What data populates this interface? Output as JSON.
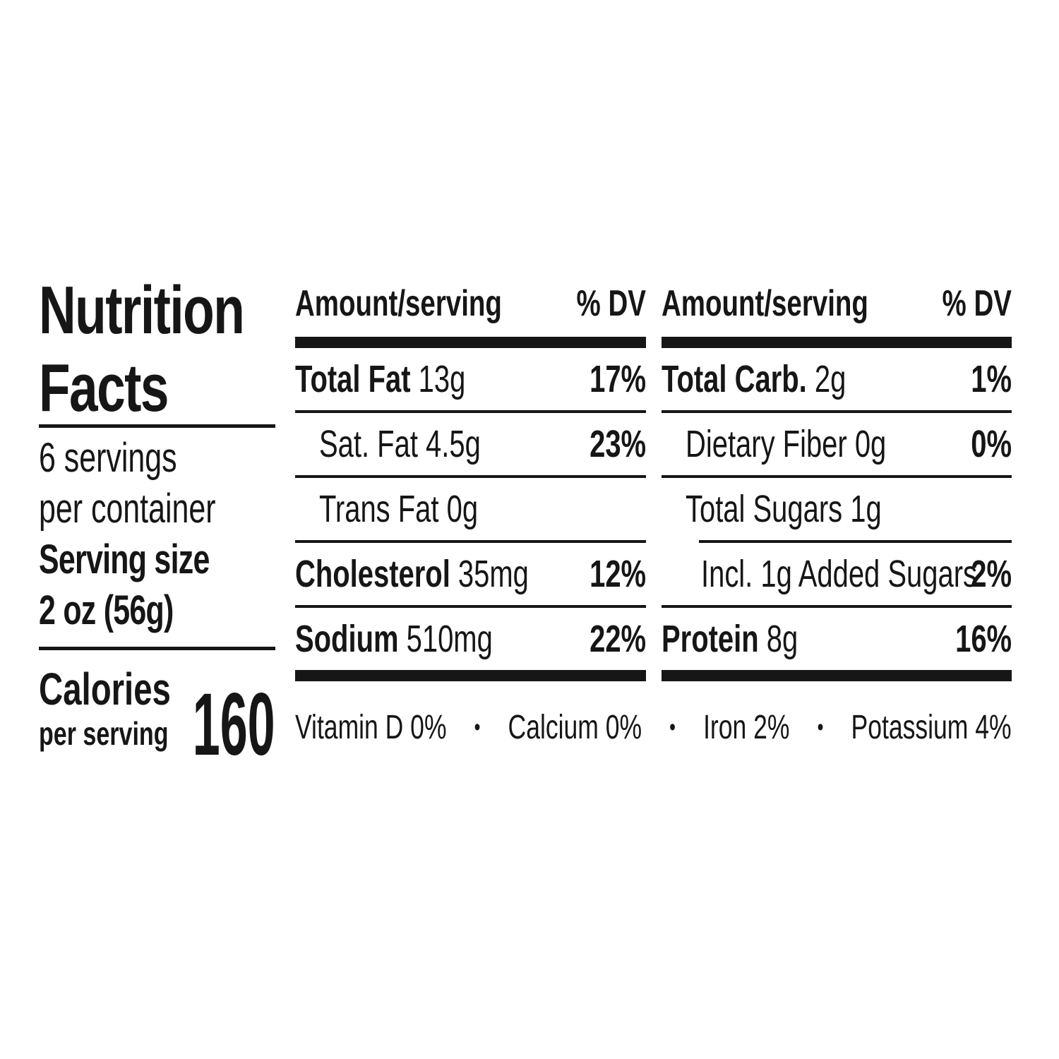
{
  "panel": {
    "title": [
      "Nutrition",
      "Facts"
    ],
    "servings_per_container": [
      "6 servings",
      "per container"
    ],
    "serving_size": {
      "label": "Serving size",
      "value": "2 oz (56g)"
    },
    "calories": {
      "label": "Calories",
      "sublabel": "per serving",
      "value": "160"
    },
    "columns_header": {
      "amount": "Amount/serving",
      "dv": "% DV"
    },
    "left_column_rows": [
      {
        "name": "Total Fat",
        "amount": "13g",
        "dv": "17%",
        "bold": true,
        "indent": 0
      },
      {
        "name": "",
        "amount": "Sat. Fat 4.5g",
        "dv": "23%",
        "bold": false,
        "indent": 1
      },
      {
        "name": "",
        "amount": "Trans Fat 0g",
        "dv": "",
        "bold": false,
        "indent": 1
      },
      {
        "name": "Cholesterol",
        "amount": "35mg",
        "dv": "12%",
        "bold": true,
        "indent": 0
      },
      {
        "name": "Sodium",
        "amount": "510mg",
        "dv": "22%",
        "bold": true,
        "indent": 0
      }
    ],
    "right_column_rows": [
      {
        "name": "Total Carb.",
        "amount": "2g",
        "dv": "1%",
        "bold": true,
        "indent": 0
      },
      {
        "name": "",
        "amount": "Dietary Fiber 0g",
        "dv": "0%",
        "bold": false,
        "indent": 1
      },
      {
        "name": "",
        "amount": "Total Sugars 1g",
        "dv": "",
        "bold": false,
        "indent": 1
      },
      {
        "name": "",
        "amount": "Incl. 1g Added Sugars",
        "dv": "2%",
        "bold": false,
        "indent": 2,
        "sep_indent": true
      },
      {
        "name": "Protein",
        "amount": "8g",
        "dv": "16%",
        "bold": true,
        "indent": 0
      }
    ],
    "micronutrients": [
      "Vitamin D 0%",
      "Calcium 0%",
      "Iron 2%",
      "Potassium 4%"
    ],
    "bullet": "•",
    "colors": {
      "ink": "#161616",
      "background": "#ffffff"
    }
  }
}
